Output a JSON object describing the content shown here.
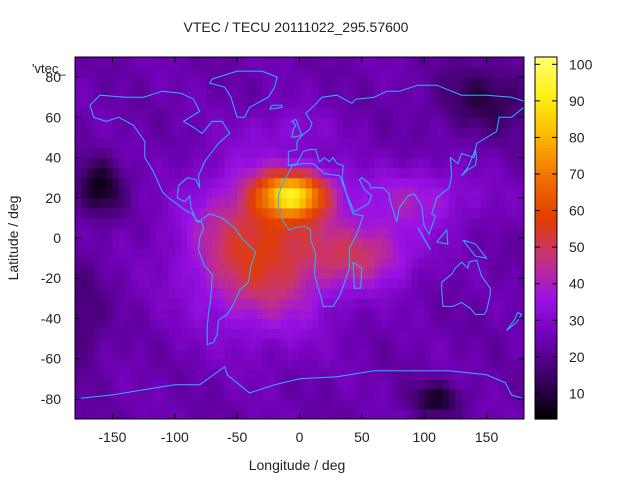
{
  "chart_data": {
    "type": "heatmap",
    "title": "VTEC / TECU 20111022_295.57600",
    "xlabel": "Longitude / deg",
    "ylabel": "Latitude / deg",
    "key_label": "'vtec_",
    "xlim": [
      -180,
      180
    ],
    "ylim": [
      -90,
      90
    ],
    "xticks": [
      -150,
      -100,
      -50,
      0,
      50,
      100,
      150
    ],
    "yticks": [
      -80,
      -60,
      -40,
      -20,
      0,
      20,
      40,
      60,
      80
    ],
    "colorbar": {
      "min": 3,
      "max": 102,
      "ticks": [
        10,
        20,
        30,
        40,
        50,
        60,
        70,
        80,
        90,
        100
      ],
      "palette": [
        "#000000",
        "#3b0061",
        "#6e00b3",
        "#9a12e6",
        "#c43280",
        "#e23d00",
        "#f07000",
        "#fbb400",
        "#ffee10",
        "#ffff70"
      ]
    },
    "field_model": {
      "background_tecu": 24,
      "blobs": [
        {
          "lon": -5,
          "lat": 22,
          "dlon": 28,
          "dlat": 11,
          "amp": 50
        },
        {
          "lon": -30,
          "lat": -5,
          "dlon": 58,
          "dlat": 38,
          "amp": 33
        },
        {
          "lon": 55,
          "lat": -8,
          "dlon": 40,
          "dlat": 16,
          "amp": 20
        },
        {
          "lon": 95,
          "lat": 20,
          "dlon": 50,
          "dlat": 16,
          "amp": 14
        },
        {
          "lon": -10,
          "lat": 55,
          "dlon": 35,
          "dlat": 10,
          "amp": 6
        },
        {
          "lon": -160,
          "lat": 25,
          "dlon": 18,
          "dlat": 14,
          "amp": -18
        },
        {
          "lon": 150,
          "lat": 70,
          "dlon": 40,
          "dlat": 18,
          "amp": -12
        },
        {
          "lon": 110,
          "lat": -80,
          "dlon": 20,
          "dlat": 8,
          "amp": -16
        },
        {
          "lon": -175,
          "lat": -40,
          "dlon": 20,
          "dlat": 25,
          "amp": -8
        }
      ]
    }
  }
}
